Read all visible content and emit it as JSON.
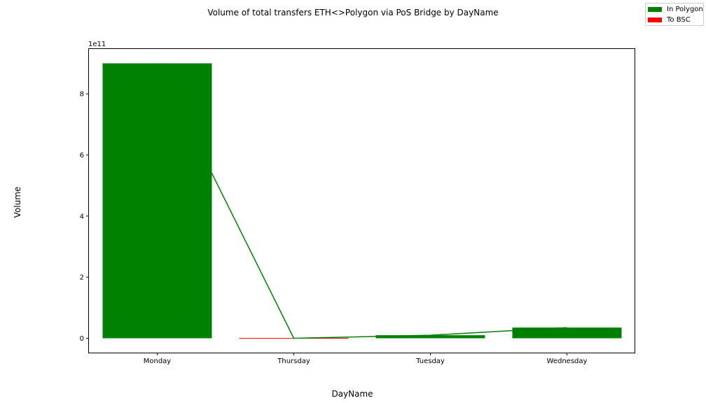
{
  "chart_data": {
    "type": "bar",
    "title": "Volume of total transfers ETH<>Polygon via PoS Bridge by DayName",
    "xlabel": "DayName",
    "ylabel": "Volume",
    "y_offset_text": "1e11",
    "categories": [
      "Monday",
      "Thursday",
      "Tuesday",
      "Wednesday"
    ],
    "series": [
      {
        "name": "In Polygon",
        "color": "#008000",
        "values": [
          900000000000,
          0,
          10000000000,
          35000000000
        ]
      },
      {
        "name": "To BSC",
        "color": "#ff0000",
        "values": [
          0,
          0,
          0,
          0
        ]
      }
    ],
    "line_series": {
      "color": "#008000",
      "values": [
        900000000000,
        0,
        10000000000,
        35000000000
      ]
    },
    "yticks": [
      0,
      200000000000,
      400000000000,
      600000000000,
      800000000000
    ],
    "ytick_labels": [
      "0",
      "2",
      "4",
      "6",
      "8"
    ],
    "ylim": [
      -47000000000,
      947000000000
    ],
    "legend_position": "top-right",
    "grid": false
  }
}
